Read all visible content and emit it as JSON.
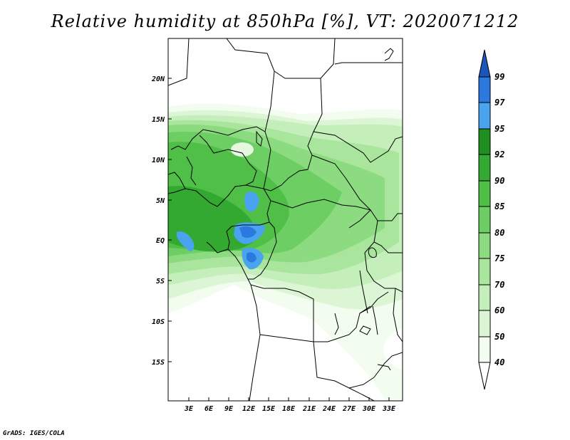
{
  "title": "Relative humidity at 850hPa [%], VT: 2020071212",
  "credit": "GrADS: IGES/COLA",
  "map": {
    "lat_labels": [
      "20N",
      "15N",
      "10N",
      "5N",
      "EQ",
      "5S",
      "10S",
      "15S"
    ],
    "lon_labels": [
      "3E",
      "6E",
      "9E",
      "12E",
      "15E",
      "18E",
      "21E",
      "24E",
      "27E",
      "30E",
      "33E"
    ]
  },
  "colorbar": {
    "levels": [
      "99",
      "97",
      "95",
      "92",
      "90",
      "85",
      "80",
      "75",
      "70",
      "60",
      "50",
      "40"
    ],
    "colors": {
      "c40_50": "#f2fdf0",
      "c50_60": "#dcf6d5",
      "c60_70": "#c4eeba",
      "c70_75": "#a9e59d",
      "c75_80": "#8cdb80",
      "c80_85": "#6dcf63",
      "c85_90": "#4fbf48",
      "c90_92": "#34a932",
      "c92_95": "#1f8f20",
      "c95_97": "#4aa3ee",
      "c97_99": "#2b79de",
      "c99_up": "#1a55b8"
    }
  }
}
